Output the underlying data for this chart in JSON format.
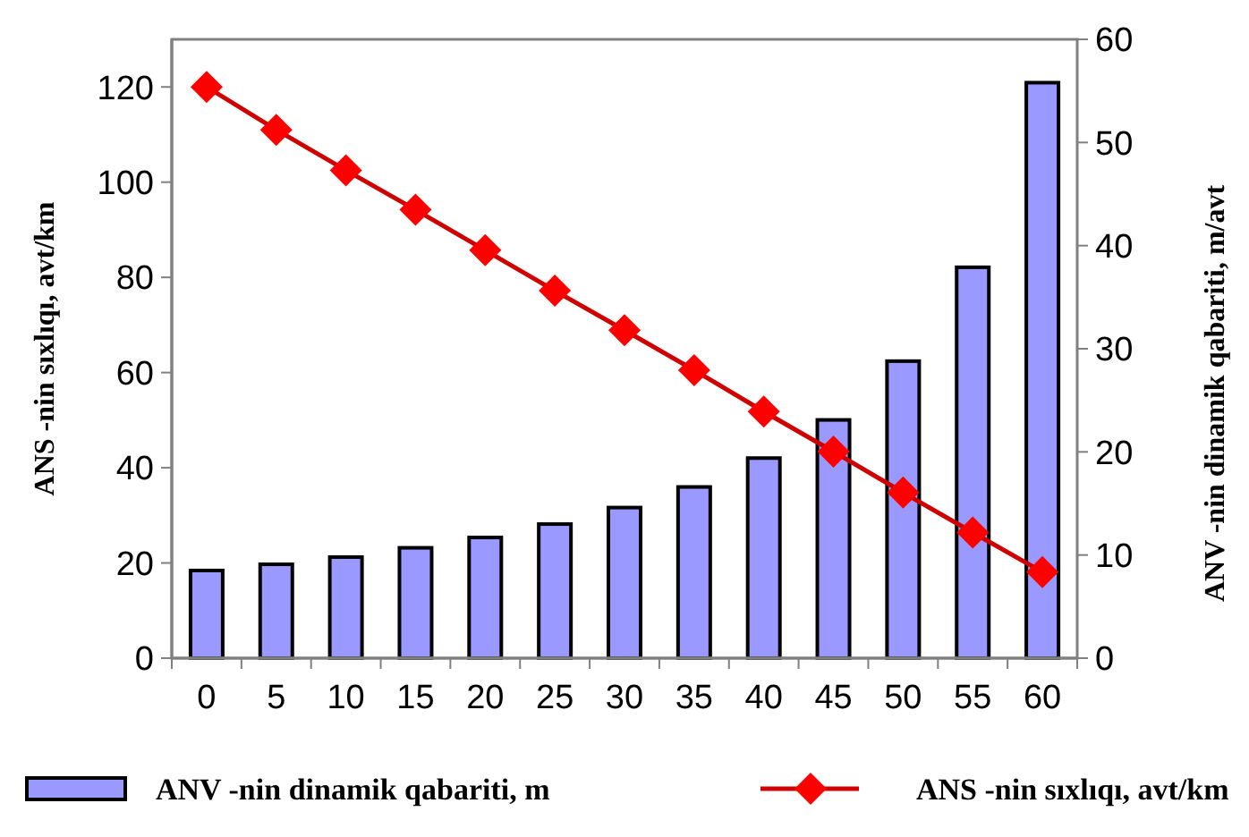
{
  "chart_data": {
    "type": "bar",
    "categories": [
      "0",
      "5",
      "10",
      "15",
      "20",
      "25",
      "30",
      "35",
      "40",
      "45",
      "50",
      "55",
      "60"
    ],
    "ylabel": "ANS -nin sıxlıqı, avt/km",
    "y2label": "ANV -nin dinamik qabariti, m/avt",
    "ylim": [
      0,
      130
    ],
    "yticks": [
      0,
      20,
      40,
      60,
      80,
      100,
      120
    ],
    "y2lim": [
      0,
      60
    ],
    "y2ticks": [
      0,
      10,
      20,
      30,
      40,
      50,
      60
    ],
    "series": [
      {
        "name": "ANV -nin dinamik qabariti, m",
        "axis": "y2",
        "color": "#9999ff",
        "values": [
          8.5,
          9.1,
          9.8,
          10.7,
          11.7,
          13.0,
          14.6,
          16.6,
          19.4,
          23.1,
          28.8,
          37.9,
          55.8
        ]
      },
      {
        "name": "ANS -nin sıxlıqı, avt/km",
        "type": "line",
        "color": "#ff0000",
        "values": [
          120,
          111,
          102.5,
          94.2,
          85.7,
          77.2,
          68.9,
          60.5,
          51.8,
          43.4,
          34.8,
          26.4,
          18.1
        ]
      }
    ],
    "grid": false,
    "legend": "bottom",
    "marker": "diamond",
    "line_style": "solid"
  }
}
